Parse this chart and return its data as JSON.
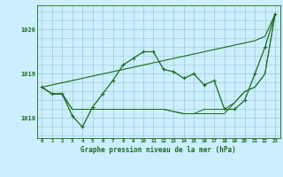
{
  "title": "Graphe pression niveau de la mer (hPa)",
  "bg_color": "#cceeff",
  "grid_color": "#99cccc",
  "line_color": "#1a6b1a",
  "x_labels": [
    "0",
    "1",
    "2",
    "3",
    "4",
    "5",
    "6",
    "7",
    "8",
    "9",
    "10",
    "11",
    "12",
    "13",
    "14",
    "15",
    "16",
    "17",
    "18",
    "19",
    "20",
    "21",
    "22",
    "23"
  ],
  "ylim": [
    1017.55,
    1020.55
  ],
  "yticks": [
    1018,
    1019,
    1020
  ],
  "series_main": [
    1018.7,
    1018.55,
    1018.55,
    1018.05,
    1017.8,
    1018.25,
    1018.55,
    1018.85,
    1019.2,
    1019.35,
    1019.5,
    1019.5,
    1019.1,
    1019.05,
    1018.9,
    1019.0,
    1018.75,
    1018.85,
    1018.2,
    1018.2,
    1018.4,
    1019.0,
    1019.6,
    1020.35
  ],
  "series_linear": [
    1018.7,
    1018.75,
    1018.8,
    1018.85,
    1018.9,
    1018.95,
    1019.0,
    1019.05,
    1019.1,
    1019.15,
    1019.2,
    1019.25,
    1019.3,
    1019.35,
    1019.4,
    1019.45,
    1019.5,
    1019.55,
    1019.6,
    1019.65,
    1019.7,
    1019.75,
    1019.85,
    1020.35
  ],
  "series_flat1": [
    1018.7,
    1018.55,
    1018.55,
    1018.2,
    1018.2,
    1018.2,
    1018.2,
    1018.2,
    1018.2,
    1018.2,
    1018.2,
    1018.2,
    1018.2,
    1018.15,
    1018.1,
    1018.1,
    1018.1,
    1018.1,
    1018.1,
    1018.35,
    1018.6,
    1018.7,
    1019.0,
    1020.35
  ],
  "series_flat2": [
    1018.7,
    1018.55,
    1018.55,
    1018.2,
    1018.2,
    1018.2,
    1018.2,
    1018.2,
    1018.2,
    1018.2,
    1018.2,
    1018.2,
    1018.2,
    1018.15,
    1018.1,
    1018.1,
    1018.2,
    1018.2,
    1018.2,
    1018.35,
    1018.6,
    1018.7,
    1019.0,
    1020.35
  ]
}
